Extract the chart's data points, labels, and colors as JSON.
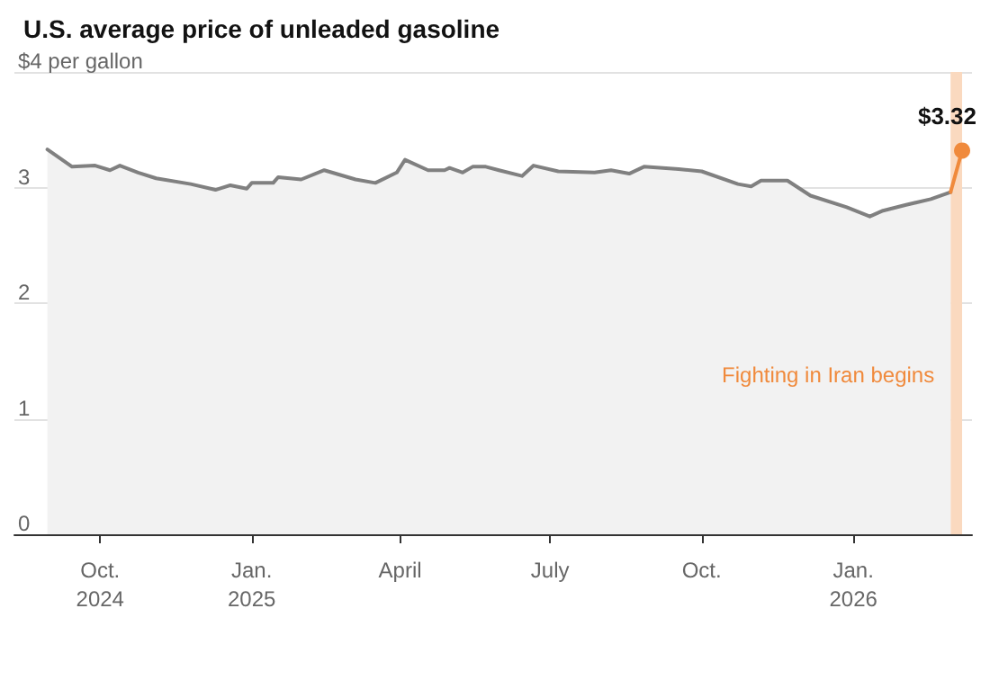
{
  "chart_data": {
    "type": "area",
    "title": "U.S. average price of unleaded gasoline",
    "xlim": [
      "2024-08-10",
      "2026-03-14"
    ],
    "xticks": [
      {
        "value": "2024-10-01",
        "label": "Oct.\n2024"
      },
      {
        "value": "2025-01-01",
        "label": "Jan.\n2025"
      },
      {
        "value": "2025-04-01",
        "label": "April"
      },
      {
        "value": "2025-07-01",
        "label": "July"
      },
      {
        "value": "2025-10-01",
        "label": "Oct."
      },
      {
        "value": "2026-01-01",
        "label": "Jan.\n2026"
      }
    ],
    "ylim": [
      0,
      4
    ],
    "yticks": [
      0,
      1,
      2,
      3,
      {
        "value": 4,
        "label": "$4 per gallon"
      }
    ],
    "grid": "y",
    "line_style": "solid",
    "series": [
      {
        "color": "#808080",
        "marker": "none",
        "x": [
          "2024-08-30",
          "2024-09-14",
          "2024-09-28",
          "2024-10-07",
          "2024-10-13",
          "2024-10-24",
          "2024-11-04",
          "2024-11-25",
          "2024-12-10",
          "2024-12-19",
          "2024-12-29",
          "2025-01-01",
          "2025-01-14",
          "2025-01-17",
          "2025-01-31",
          "2025-02-14",
          "2025-03-05",
          "2025-03-17",
          "2025-03-30",
          "2025-04-04",
          "2025-04-18",
          "2025-04-28",
          "2025-05-01",
          "2025-05-09",
          "2025-05-15",
          "2025-05-23",
          "2025-05-31",
          "2025-06-14",
          "2025-06-21",
          "2025-07-06",
          "2025-07-28",
          "2025-08-07",
          "2025-08-18",
          "2025-08-27",
          "2025-09-17",
          "2025-10-01",
          "2025-10-23",
          "2025-10-31",
          "2025-11-06",
          "2025-11-22",
          "2025-12-06",
          "2025-12-28",
          "2026-01-11",
          "2026-01-19",
          "2026-02-02",
          "2026-02-17",
          "2026-03-01"
        ],
        "values": [
          3.33,
          3.18,
          3.19,
          3.15,
          3.19,
          3.13,
          3.08,
          3.03,
          2.98,
          3.02,
          2.99,
          3.04,
          3.04,
          3.09,
          3.07,
          3.15,
          3.07,
          3.04,
          3.13,
          3.24,
          3.15,
          3.15,
          3.17,
          3.13,
          3.18,
          3.18,
          3.15,
          3.1,
          3.19,
          3.14,
          3.13,
          3.15,
          3.12,
          3.18,
          3.16,
          3.14,
          3.03,
          3.01,
          3.06,
          3.06,
          2.93,
          2.83,
          2.75,
          2.8,
          2.85,
          2.9,
          2.96
        ]
      },
      {
        "type": "line",
        "color": "#f08a3c",
        "marker": "circle",
        "x": [
          "2026-03-01",
          "2026-03-08"
        ],
        "values": [
          2.96,
          3.32
        ],
        "value_labels": [
          null,
          "$3.32"
        ]
      }
    ],
    "bands": [
      {
        "axis": "x",
        "from": "2026-03-01",
        "to": "2026-03-08",
        "label": "Fighting in Iran begins",
        "color": "#fad9bf"
      }
    ]
  }
}
